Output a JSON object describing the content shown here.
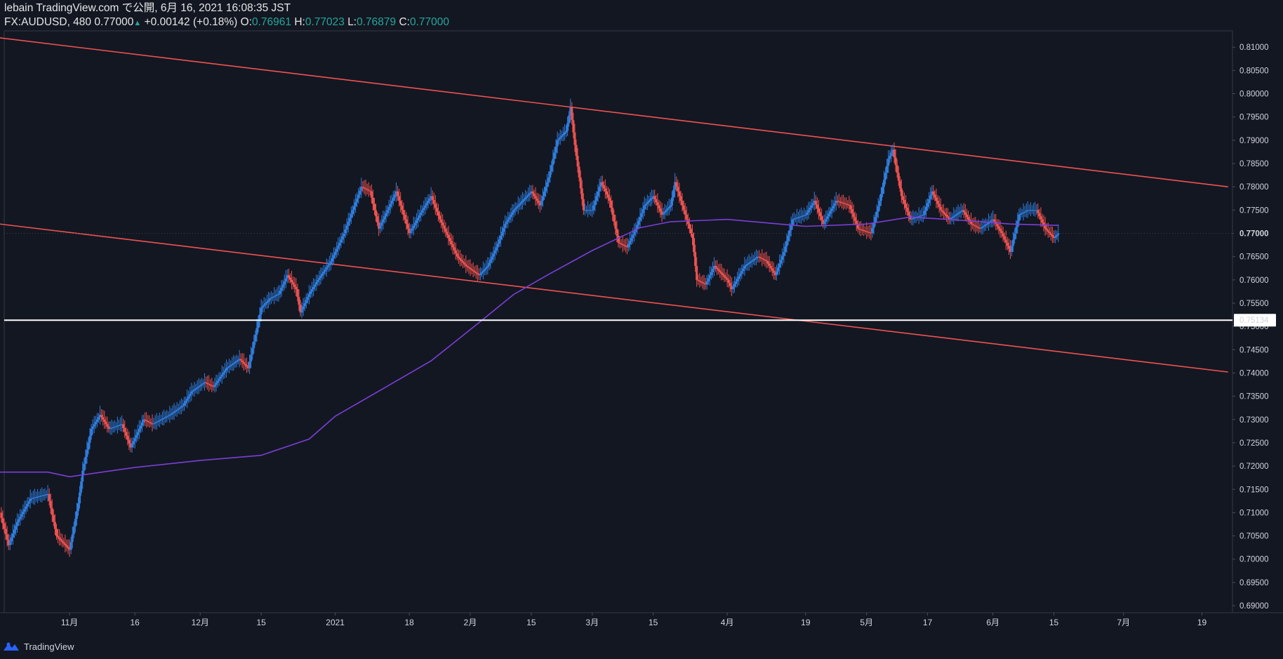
{
  "header": {
    "line1": "lebain TradingView.com で公開, 6月 16, 2021 16:08:35 JST",
    "symbol": "FX:AUDUSD, 480",
    "last": "0.77000",
    "change": "+0.00142 (+0.18%)",
    "o_label": "O:",
    "o": "0.76961",
    "h_label": "H:",
    "h": "0.77023",
    "l_label": "L:",
    "l": "0.76879",
    "c_label": "C:",
    "c": "0.77000"
  },
  "footer": {
    "brand": "TradingView"
  },
  "colors": {
    "background": "#131722",
    "up": "#2f7fe0",
    "down": "#ef5350",
    "trendline": "#ef5350",
    "ma": "#7b3fd6",
    "support": "#ffffff",
    "text": "#d1d4dc",
    "header_value": "#26a69a"
  },
  "chart_data": {
    "type": "line",
    "symbol": "FX:AUDUSD",
    "interval": "480",
    "ylim": [
      0.6885,
      0.8135
    ],
    "y_axis_position": "right",
    "y_ticks": [
      "0.81000",
      "0.80500",
      "0.80000",
      "0.79500",
      "0.79000",
      "0.78500",
      "0.78000",
      "0.77500",
      "0.77000",
      "0.76500",
      "0.76000",
      "0.75500",
      "0.75000",
      "0.74500",
      "0.74000",
      "0.73500",
      "0.73000",
      "0.72500",
      "0.72000",
      "0.71500",
      "0.71000",
      "0.70500",
      "0.70000",
      "0.69500",
      "0.69000"
    ],
    "x_ticks": [
      {
        "label": "11月",
        "date": "2020-11-01"
      },
      {
        "label": "16",
        "date": "2020-11-16"
      },
      {
        "label": "12月",
        "date": "2020-12-01"
      },
      {
        "label": "15",
        "date": "2020-12-15"
      },
      {
        "label": "2021",
        "date": "2021-01-01"
      },
      {
        "label": "18",
        "date": "2021-01-18"
      },
      {
        "label": "2月",
        "date": "2021-02-01"
      },
      {
        "label": "15",
        "date": "2021-02-15"
      },
      {
        "label": "3月",
        "date": "2021-03-01"
      },
      {
        "label": "15",
        "date": "2021-03-15"
      },
      {
        "label": "4月",
        "date": "2021-04-01"
      },
      {
        "label": "19",
        "date": "2021-04-19"
      },
      {
        "label": "5月",
        "date": "2021-05-03"
      },
      {
        "label": "17",
        "date": "2021-05-17"
      },
      {
        "label": "6月",
        "date": "2021-06-01"
      },
      {
        "label": "15",
        "date": "2021-06-15"
      },
      {
        "label": "7月",
        "date": "2021-07-01"
      },
      {
        "label": "19",
        "date": "2021-07-19"
      }
    ],
    "last_price": {
      "value": 0.77,
      "label": "0.77000"
    },
    "support_level": {
      "value": 0.75134,
      "label": "0.75134"
    },
    "close_path": [
      [
        "2020-10-16",
        0.71
      ],
      [
        "2020-10-18",
        0.703
      ],
      [
        "2020-10-20",
        0.708
      ],
      [
        "2020-10-23",
        0.713
      ],
      [
        "2020-10-27",
        0.714
      ],
      [
        "2020-10-29",
        0.705
      ],
      [
        "2020-11-01",
        0.702
      ],
      [
        "2020-11-03",
        0.712
      ],
      [
        "2020-11-04",
        0.719
      ],
      [
        "2020-11-06",
        0.728
      ],
      [
        "2020-11-08",
        0.731
      ],
      [
        "2020-11-10",
        0.728
      ],
      [
        "2020-11-13",
        0.729
      ],
      [
        "2020-11-15",
        0.724
      ],
      [
        "2020-11-18",
        0.73
      ],
      [
        "2020-11-20",
        0.729
      ],
      [
        "2020-11-24",
        0.731
      ],
      [
        "2020-11-27",
        0.733
      ],
      [
        "2020-11-29",
        0.736
      ],
      [
        "2020-12-02",
        0.738
      ],
      [
        "2020-12-04",
        0.737
      ],
      [
        "2020-12-07",
        0.741
      ],
      [
        "2020-12-10",
        0.743
      ],
      [
        "2020-12-12",
        0.741
      ],
      [
        "2020-12-15",
        0.754
      ],
      [
        "2020-12-17",
        0.756
      ],
      [
        "2020-12-19",
        0.757
      ],
      [
        "2020-12-21",
        0.761
      ],
      [
        "2020-12-23",
        0.758
      ],
      [
        "2020-12-24",
        0.753
      ],
      [
        "2020-12-26",
        0.757
      ],
      [
        "2020-12-28",
        0.76
      ],
      [
        "2020-12-31",
        0.764
      ],
      [
        "2021-01-03",
        0.77
      ],
      [
        "2021-01-05",
        0.775
      ],
      [
        "2021-01-07",
        0.78
      ],
      [
        "2021-01-09",
        0.779
      ],
      [
        "2021-01-11",
        0.771
      ],
      [
        "2021-01-13",
        0.775
      ],
      [
        "2021-01-15",
        0.779
      ],
      [
        "2021-01-18",
        0.77
      ],
      [
        "2021-01-21",
        0.775
      ],
      [
        "2021-01-23",
        0.778
      ],
      [
        "2021-01-25",
        0.773
      ],
      [
        "2021-01-27",
        0.769
      ],
      [
        "2021-01-29",
        0.765
      ],
      [
        "2021-01-31",
        0.763
      ],
      [
        "2021-02-03",
        0.761
      ],
      [
        "2021-02-05",
        0.763
      ],
      [
        "2021-02-07",
        0.767
      ],
      [
        "2021-02-09",
        0.772
      ],
      [
        "2021-02-11",
        0.775
      ],
      [
        "2021-02-13",
        0.777
      ],
      [
        "2021-02-15",
        0.779
      ],
      [
        "2021-02-17",
        0.776
      ],
      [
        "2021-02-19",
        0.782
      ],
      [
        "2021-02-21",
        0.79
      ],
      [
        "2021-02-23",
        0.792
      ],
      [
        "2021-02-24",
        0.797
      ],
      [
        "2021-02-25",
        0.789
      ],
      [
        "2021-02-27",
        0.775
      ],
      [
        "2021-03-01",
        0.775
      ],
      [
        "2021-03-03",
        0.781
      ],
      [
        "2021-03-05",
        0.777
      ],
      [
        "2021-03-07",
        0.768
      ],
      [
        "2021-03-09",
        0.767
      ],
      [
        "2021-03-11",
        0.771
      ],
      [
        "2021-03-13",
        0.776
      ],
      [
        "2021-03-15",
        0.778
      ],
      [
        "2021-03-17",
        0.774
      ],
      [
        "2021-03-19",
        0.776
      ],
      [
        "2021-03-20",
        0.781
      ],
      [
        "2021-03-22",
        0.775
      ],
      [
        "2021-03-24",
        0.769
      ],
      [
        "2021-03-25",
        0.76
      ],
      [
        "2021-03-27",
        0.759
      ],
      [
        "2021-03-29",
        0.763
      ],
      [
        "2021-04-01",
        0.76
      ],
      [
        "2021-04-02",
        0.758
      ],
      [
        "2021-04-05",
        0.763
      ],
      [
        "2021-04-08",
        0.765
      ],
      [
        "2021-04-10",
        0.764
      ],
      [
        "2021-04-12",
        0.761
      ],
      [
        "2021-04-14",
        0.766
      ],
      [
        "2021-04-16",
        0.773
      ],
      [
        "2021-04-19",
        0.774
      ],
      [
        "2021-04-21",
        0.777
      ],
      [
        "2021-04-23",
        0.772
      ],
      [
        "2021-04-26",
        0.777
      ],
      [
        "2021-04-29",
        0.776
      ],
      [
        "2021-05-01",
        0.771
      ],
      [
        "2021-05-04",
        0.77
      ],
      [
        "2021-05-06",
        0.777
      ],
      [
        "2021-05-08",
        0.786
      ],
      [
        "2021-05-09",
        0.788
      ],
      [
        "2021-05-11",
        0.778
      ],
      [
        "2021-05-13",
        0.773
      ],
      [
        "2021-05-16",
        0.774
      ],
      [
        "2021-05-18",
        0.779
      ],
      [
        "2021-05-20",
        0.775
      ],
      [
        "2021-05-22",
        0.773
      ],
      [
        "2021-05-25",
        0.775
      ],
      [
        "2021-05-27",
        0.772
      ],
      [
        "2021-05-29",
        0.771
      ],
      [
        "2021-06-01",
        0.773
      ],
      [
        "2021-06-03",
        0.77
      ],
      [
        "2021-06-05",
        0.766
      ],
      [
        "2021-06-07",
        0.774
      ],
      [
        "2021-06-09",
        0.775
      ],
      [
        "2021-06-11",
        0.775
      ],
      [
        "2021-06-13",
        0.771
      ],
      [
        "2021-06-15",
        0.769
      ],
      [
        "2021-06-16",
        0.77
      ]
    ],
    "ma_path": [
      [
        "2020-10-16",
        0.7187
      ],
      [
        "2020-10-27",
        0.7187
      ],
      [
        "2020-11-01",
        0.7177
      ],
      [
        "2020-11-16",
        0.7197
      ],
      [
        "2020-12-01",
        0.7212
      ],
      [
        "2020-12-15",
        0.7223
      ],
      [
        "2020-12-26",
        0.7258
      ],
      [
        "2021-01-01",
        0.7307
      ],
      [
        "2021-01-11",
        0.7361
      ],
      [
        "2021-01-23",
        0.7426
      ],
      [
        "2021-02-03",
        0.7508
      ],
      [
        "2021-02-11",
        0.7569
      ],
      [
        "2021-02-19",
        0.7612
      ],
      [
        "2021-03-01",
        0.7663
      ],
      [
        "2021-03-12",
        0.7712
      ],
      [
        "2021-03-19",
        0.7725
      ],
      [
        "2021-04-01",
        0.773
      ],
      [
        "2021-04-19",
        0.7715
      ],
      [
        "2021-05-03",
        0.772
      ],
      [
        "2021-05-13",
        0.7735
      ],
      [
        "2021-05-25",
        0.7728
      ],
      [
        "2021-06-05",
        0.772
      ],
      [
        "2021-06-16",
        0.7717
      ]
    ],
    "trendlines": [
      {
        "from": [
          "2020-10-16",
          0.812
        ],
        "to": [
          "2021-07-25",
          0.78
        ]
      },
      {
        "from": [
          "2020-10-16",
          0.772
        ],
        "to": [
          "2021-07-25",
          0.7402
        ]
      }
    ]
  }
}
